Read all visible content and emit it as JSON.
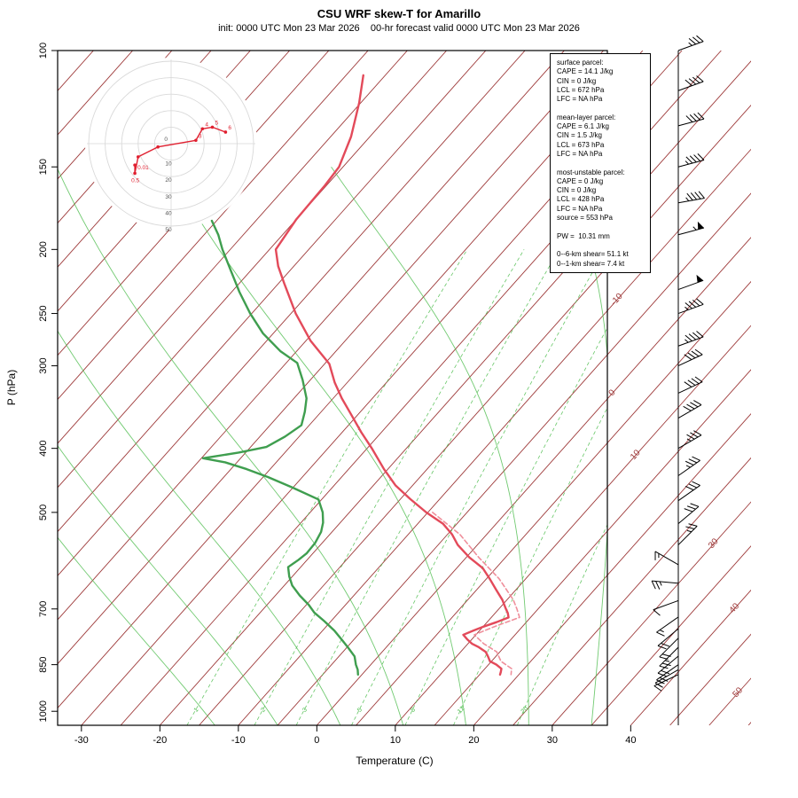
{
  "title": "CSU WRF skew-T for Amarillo",
  "subtitle": "init: 0000 UTC Mon 23 Mar 2026    00-hr forecast valid 0000 UTC Mon 23 Mar 2026",
  "axes": {
    "pressure_label": "P (hPa)",
    "temp_label": "Temperature (C)",
    "pressure_ticks": [
      100,
      150,
      200,
      250,
      300,
      400,
      500,
      700,
      850,
      1000
    ],
    "temp_ticks": [
      -30,
      -20,
      -10,
      0,
      10,
      20,
      30,
      40
    ]
  },
  "colors": {
    "isotherm": "#9e3a3a",
    "mixing_ratio": "#4dbd4d",
    "moist_adiabat": "#4dbd4d",
    "temperature": "#e34a5a",
    "virtual_temperature": "#ef8f9b",
    "dewpoint": "#3f9e4f",
    "hodograph_trace": "#e01f2f",
    "ring": "#d9d9d9",
    "barb": "#000000"
  },
  "parcel_info": {
    "lines": [
      "surface parcel:",
      "CAPE = 14.1 J/kg",
      "CIN = 0 J/kg",
      "LCL = 672 hPa",
      "LFC = NA hPa",
      "",
      "mean-layer parcel:",
      "CAPE = 6.1 J/kg",
      "CIN = 1.5 J/kg",
      "LCL = 673 hPa",
      "LFC = NA hPa",
      "",
      "most-unstable parcel:",
      "CAPE = 0 J/kg",
      "CIN = 0 J/kg",
      "LCL = 428 hPa",
      "LFC = NA hPa",
      "source = 553 hPa",
      "",
      "PW =  10.31 mm",
      "",
      "0--6-km shear= 51.1 kt",
      "0--1-km shear= 7.4 kt"
    ]
  },
  "chart_data": {
    "type": "line",
    "variant": "skew-t log-p sounding",
    "title": "CSU WRF skew-T for Amarillo",
    "xlabel": "Temperature (C)",
    "ylabel": "P (hPa)",
    "pressure_range_hPa": [
      100,
      1050
    ],
    "temp_axis_ticks_C": [
      -30,
      -20,
      -10,
      0,
      10,
      20,
      30,
      40
    ],
    "pressure_axis_ticks_hPa": [
      100,
      150,
      200,
      250,
      300,
      400,
      500,
      700,
      850,
      1000
    ],
    "isotherm_step_C": 5,
    "isotherm_right_edge_labels_C": [
      -10,
      0,
      10,
      30,
      40,
      50
    ],
    "mixing_ratio_lines_g_kg": [
      1,
      2,
      3,
      5,
      8,
      12,
      20
    ],
    "moist_adiabat_surface_temps_C": [
      -13,
      -5,
      3,
      11,
      19,
      27,
      35,
      43
    ],
    "series": [
      {
        "name": "temperature",
        "units": [
          "hPa",
          "C"
        ],
        "points": [
          [
            109,
            -67.8
          ],
          [
            120,
            -65.2
          ],
          [
            135,
            -62.4
          ],
          [
            150,
            -60.5
          ],
          [
            160,
            -60.2
          ],
          [
            180,
            -60.0
          ],
          [
            200,
            -59.2
          ],
          [
            212,
            -57.0
          ],
          [
            225,
            -54.3
          ],
          [
            250,
            -49.4
          ],
          [
            275,
            -44.4
          ],
          [
            298,
            -39.4
          ],
          [
            318,
            -36.6
          ],
          [
            336,
            -33.9
          ],
          [
            356,
            -30.8
          ],
          [
            378,
            -27.6
          ],
          [
            400,
            -24.4
          ],
          [
            430,
            -20.5
          ],
          [
            455,
            -17.2
          ],
          [
            477,
            -13.8
          ],
          [
            500,
            -10.2
          ],
          [
            520,
            -6.8
          ],
          [
            540,
            -4.4
          ],
          [
            560,
            -2.5
          ],
          [
            585,
            0.4
          ],
          [
            607,
            3.3
          ],
          [
            630,
            5.4
          ],
          [
            655,
            7.5
          ],
          [
            678,
            9.4
          ],
          [
            700,
            10.9
          ],
          [
            710,
            11.6
          ],
          [
            721,
            12.2
          ],
          [
            733,
            11.2
          ],
          [
            745,
            10.0
          ],
          [
            755,
            9.2
          ],
          [
            766,
            8.4
          ],
          [
            778,
            9.4
          ],
          [
            790,
            10.5
          ],
          [
            800,
            11.8
          ],
          [
            813,
            13.2
          ],
          [
            826,
            14.0
          ],
          [
            840,
            14.8
          ],
          [
            850,
            16.0
          ],
          [
            862,
            17.1
          ],
          [
            872,
            17.4
          ],
          [
            880,
            17.6
          ]
        ]
      },
      {
        "name": "virtual-temperature",
        "units": [
          "hPa",
          "C"
        ],
        "points": [
          [
            500,
            -9.4
          ],
          [
            540,
            -3.4
          ],
          [
            585,
            1.6
          ],
          [
            630,
            6.6
          ],
          [
            678,
            10.8
          ],
          [
            700,
            12.3
          ],
          [
            721,
            13.6
          ],
          [
            745,
            11.4
          ],
          [
            766,
            9.8
          ],
          [
            790,
            12.0
          ],
          [
            813,
            14.6
          ],
          [
            840,
            16.2
          ],
          [
            862,
            18.4
          ],
          [
            880,
            19.0
          ]
        ]
      },
      {
        "name": "dewpoint",
        "units": [
          "hPa",
          "C"
        ],
        "points": [
          [
            181,
            -70.6
          ],
          [
            190,
            -68.2
          ],
          [
            200,
            -66.0
          ],
          [
            215,
            -62.6
          ],
          [
            232,
            -59.0
          ],
          [
            250,
            -55.2
          ],
          [
            268,
            -51.3
          ],
          [
            285,
            -47.1
          ],
          [
            297,
            -43.6
          ],
          [
            315,
            -41.0
          ],
          [
            336,
            -38.4
          ],
          [
            352,
            -37.1
          ],
          [
            369,
            -36.0
          ],
          [
            384,
            -36.8
          ],
          [
            398,
            -38.0
          ],
          [
            406,
            -40.9
          ],
          [
            414,
            -44.8
          ],
          [
            420,
            -41.5
          ],
          [
            430,
            -38.0
          ],
          [
            442,
            -34.4
          ],
          [
            458,
            -30.2
          ],
          [
            478,
            -25.4
          ],
          [
            500,
            -23.4
          ],
          [
            518,
            -22.2
          ],
          [
            535,
            -21.4
          ],
          [
            556,
            -20.9
          ],
          [
            577,
            -20.8
          ],
          [
            590,
            -21.1
          ],
          [
            605,
            -21.6
          ],
          [
            625,
            -20.4
          ],
          [
            645,
            -19.0
          ],
          [
            668,
            -16.9
          ],
          [
            690,
            -14.7
          ],
          [
            709,
            -13.1
          ],
          [
            730,
            -10.9
          ],
          [
            755,
            -8.5
          ],
          [
            777,
            -6.7
          ],
          [
            800,
            -4.9
          ],
          [
            826,
            -3.0
          ],
          [
            850,
            -1.9
          ],
          [
            865,
            -1.1
          ],
          [
            880,
            -0.5
          ]
        ]
      }
    ],
    "hodograph": {
      "ring_labels_kt": [
        10,
        20,
        30,
        40,
        50
      ],
      "origin_label": "0",
      "units": "kt",
      "points": [
        {
          "km": "0.01",
          "u": -22,
          "v": -13,
          "label": "0.01"
        },
        {
          "km": "0.5",
          "u": -22,
          "v": -18,
          "label": "0.5"
        },
        {
          "km": "1",
          "u": -20,
          "v": -8
        },
        {
          "km": "2",
          "u": -8,
          "v": -2
        },
        {
          "km": "3",
          "u": 15,
          "v": 2,
          "label": "3"
        },
        {
          "km": "4",
          "u": 19,
          "v": 9,
          "label": "4"
        },
        {
          "km": "5",
          "u": 25,
          "v": 10,
          "label": "5"
        },
        {
          "km": "6",
          "u": 33,
          "v": 7,
          "label": "6"
        }
      ]
    },
    "wind_barbs": [
      {
        "p": 100,
        "dir": 250,
        "spd": 35
      },
      {
        "p": 115,
        "dir": 250,
        "spd": 40
      },
      {
        "p": 130,
        "dir": 255,
        "spd": 40
      },
      {
        "p": 150,
        "dir": 255,
        "spd": 45
      },
      {
        "p": 170,
        "dir": 260,
        "spd": 45
      },
      {
        "p": 190,
        "dir": 255,
        "spd": 55
      },
      {
        "p": 230,
        "dir": 250,
        "spd": 50
      },
      {
        "p": 250,
        "dir": 250,
        "spd": 45
      },
      {
        "p": 280,
        "dir": 250,
        "spd": 45
      },
      {
        "p": 300,
        "dir": 245,
        "spd": 40
      },
      {
        "p": 330,
        "dir": 245,
        "spd": 40
      },
      {
        "p": 360,
        "dir": 240,
        "spd": 40
      },
      {
        "p": 400,
        "dir": 240,
        "spd": 35
      },
      {
        "p": 440,
        "dir": 235,
        "spd": 35
      },
      {
        "p": 480,
        "dir": 235,
        "spd": 30
      },
      {
        "p": 520,
        "dir": 230,
        "spd": 30
      },
      {
        "p": 560,
        "dir": 225,
        "spd": 25
      },
      {
        "p": 600,
        "dir": 120,
        "spd": 15
      },
      {
        "p": 640,
        "dir": 95,
        "spd": 25
      },
      {
        "p": 680,
        "dir": 70,
        "spd": 10
      },
      {
        "p": 720,
        "dir": 55,
        "spd": 15
      },
      {
        "p": 750,
        "dir": 50,
        "spd": 20
      },
      {
        "p": 775,
        "dir": 45,
        "spd": 20
      },
      {
        "p": 800,
        "dir": 45,
        "spd": 25
      },
      {
        "p": 825,
        "dir": 50,
        "spd": 20
      },
      {
        "p": 850,
        "dir": 55,
        "spd": 20
      },
      {
        "p": 865,
        "dir": 60,
        "spd": 15
      },
      {
        "p": 880,
        "dir": 65,
        "spd": 15
      }
    ]
  }
}
